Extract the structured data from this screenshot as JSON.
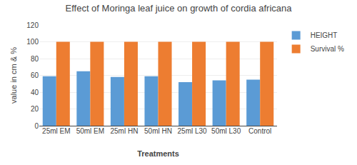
{
  "chart_data": {
    "type": "bar",
    "title": "Effect of Moringa leaf juice on growth of cordia africana",
    "xlabel": "Treatments",
    "ylabel": "value in cm & %",
    "categories": [
      "25ml EM",
      "50ml EM",
      "25ml HN",
      "50ml HN",
      "25ml L30",
      "50ml L30",
      "Control"
    ],
    "series": [
      {
        "name": "HEIGHT",
        "color": "#5B9BD5",
        "values": [
          59,
          65,
          58,
          59,
          52,
          54,
          55
        ]
      },
      {
        "name": "Survival %",
        "color": "#ED7D31",
        "values": [
          100,
          100,
          100,
          100,
          100,
          100,
          100
        ]
      }
    ],
    "ylim": [
      0,
      120
    ],
    "yticks": [
      0,
      20,
      40,
      60,
      80,
      100,
      120
    ],
    "grid": true,
    "legend": "upper right"
  }
}
